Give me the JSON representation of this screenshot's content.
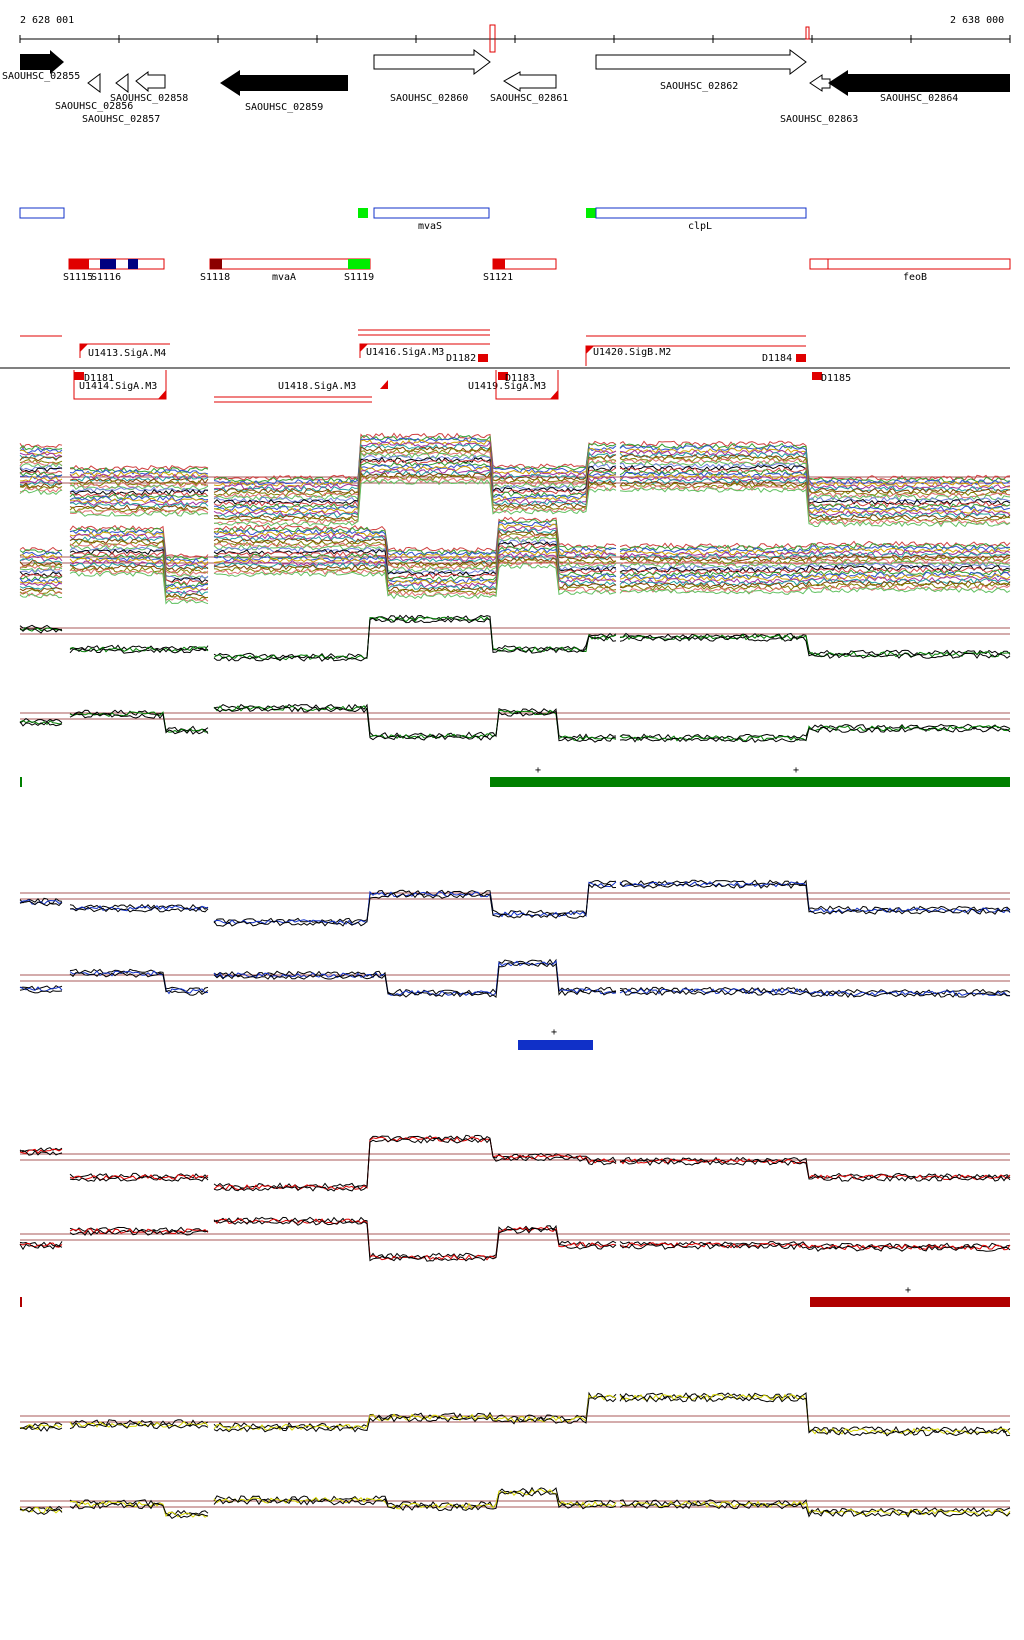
{
  "ruler": {
    "start_label": "2 628 001",
    "end_label": "2 638 000"
  },
  "colors": {
    "black": "#000000",
    "red": "#e00000",
    "blue": "#1030c8",
    "green": "#008000",
    "bright_green": "#00ee00",
    "navy": "#000080",
    "dark_red": "#8b0000",
    "yellow": "#d8d800",
    "baseline": "#8b2020"
  },
  "genes": [
    {
      "name": "SAOUHSC_02855",
      "strand": "+",
      "filled": true
    },
    {
      "name": "SAOUHSC_02856",
      "strand": "-",
      "filled": false
    },
    {
      "name": "SAOUHSC_02857",
      "strand": "-",
      "filled": false
    },
    {
      "name": "SAOUHSC_02858",
      "strand": "-",
      "filled": false
    },
    {
      "name": "SAOUHSC_02859",
      "strand": "-",
      "filled": true
    },
    {
      "name": "SAOUHSC_02860",
      "strand": "+",
      "filled": false
    },
    {
      "name": "SAOUHSC_02861",
      "strand": "-",
      "filled": false
    },
    {
      "name": "SAOUHSC_02862",
      "strand": "+",
      "filled": false
    },
    {
      "name": "SAOUHSC_02863",
      "strand": "-",
      "filled": false
    },
    {
      "name": "SAOUHSC_02864",
      "strand": "-",
      "filled": true
    }
  ],
  "annot_plus": [
    {
      "label": ""
    },
    {
      "label": "mvaS"
    },
    {
      "label": "clpL"
    }
  ],
  "annot_minus": {
    "labels": [
      "S1115",
      "S1116",
      "S1118",
      "mvaA",
      "S1119",
      "S1121",
      "feoB"
    ]
  },
  "tss_labels": [
    "U1413.SigA.M4",
    "U1414.SigA.M3",
    "U1416.SigA.M3",
    "U1418.SigA.M3",
    "U1420.SigB.M2",
    "U1419.SigA.M3",
    "D1181",
    "D1182",
    "D1183",
    "D1184",
    "D1185"
  ],
  "segments": [
    {
      "marker": "+"
    },
    {
      "marker": "+"
    },
    {
      "marker": "+"
    },
    {
      "marker": "+"
    }
  ]
}
